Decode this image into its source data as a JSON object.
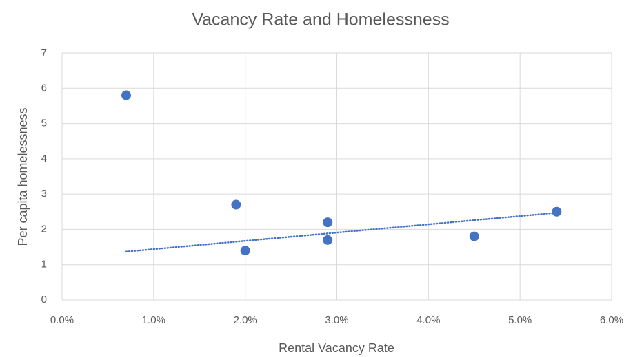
{
  "chart_data": {
    "type": "scatter",
    "title": "Vacancy Rate and Homelessness",
    "x_label": "Rental Vacancy Rate",
    "y_label": "Per capita homelessness",
    "series": [
      {
        "name": "Per capita homelessness",
        "color": "#4472c4",
        "x": [
          0.7,
          1.9,
          2.0,
          2.9,
          2.9,
          4.5,
          5.4
        ],
        "values": [
          5.8,
          2.7,
          1.4,
          2.2,
          1.7,
          1.8,
          2.5
        ]
      }
    ],
    "trendline": {
      "color": "#4472c4",
      "x": [
        0.7,
        5.4
      ],
      "values": [
        1.37,
        2.47
      ]
    },
    "xlim": [
      0,
      6
    ],
    "xticks": [
      {
        "value": 0,
        "label": "0.0%"
      },
      {
        "value": 1,
        "label": "1.0%"
      },
      {
        "value": 2,
        "label": "2.0%"
      },
      {
        "value": 3,
        "label": "3.0%"
      },
      {
        "value": 4,
        "label": "4.0%"
      },
      {
        "value": 5,
        "label": "5.0%"
      },
      {
        "value": 6,
        "label": "6.0%"
      }
    ],
    "ylim": [
      0,
      7
    ],
    "yticks": [
      0,
      1,
      2,
      3,
      4,
      5,
      6,
      7
    ],
    "grid": true
  }
}
